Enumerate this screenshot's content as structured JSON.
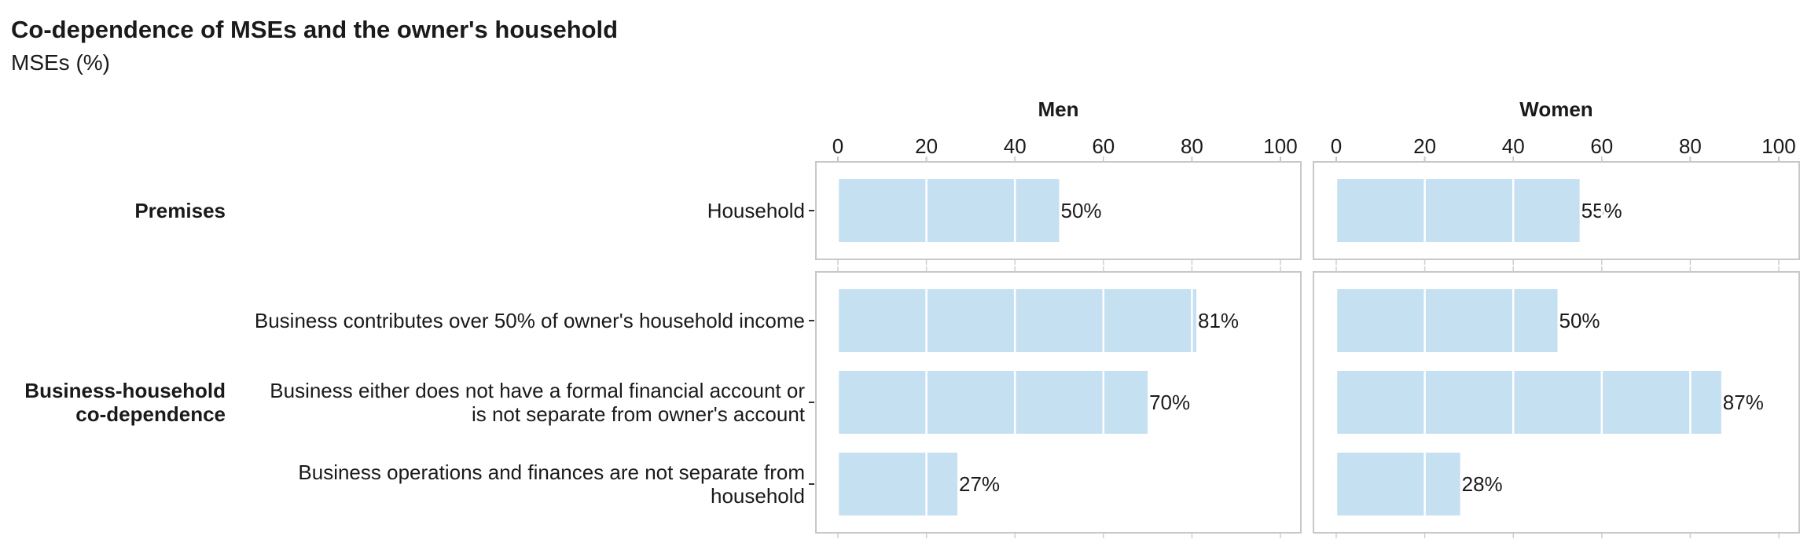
{
  "chart_data": {
    "type": "bar",
    "orientation": "horizontal",
    "title": "Co-dependence of MSEs and the owner's household",
    "subtitle": "MSEs (%)",
    "xlim": [
      0,
      100
    ],
    "ticks": [
      "0",
      "20",
      "40",
      "60",
      "80",
      "100"
    ],
    "tick_values": [
      0,
      20,
      40,
      60,
      80,
      100
    ],
    "facets": [
      "Men",
      "Women"
    ],
    "bar_color": "#c5e0f1",
    "grid": true,
    "groups": [
      {
        "name": "Premises",
        "name_lines": [
          "Premises"
        ],
        "categories": [
          {
            "lines": [
              "Household"
            ],
            "values": [
              50,
              55
            ],
            "labels": [
              "50%",
              "55%"
            ]
          }
        ]
      },
      {
        "name": "Business-household co-dependence",
        "name_lines": [
          "Business-household",
          "co-dependence"
        ],
        "categories": [
          {
            "lines": [
              "Business contributes over 50% of owner's household income"
            ],
            "values": [
              81,
              50
            ],
            "labels": [
              "81%",
              "50%"
            ]
          },
          {
            "lines": [
              "Business either does not have a formal financial account or",
              "is not separate from owner's account"
            ],
            "values": [
              70,
              87
            ],
            "labels": [
              "70%",
              "87%"
            ]
          },
          {
            "lines": [
              "Business operations and finances are not separate from",
              "household"
            ],
            "values": [
              27,
              28
            ],
            "labels": [
              "27%",
              "28%"
            ]
          }
        ]
      }
    ]
  }
}
